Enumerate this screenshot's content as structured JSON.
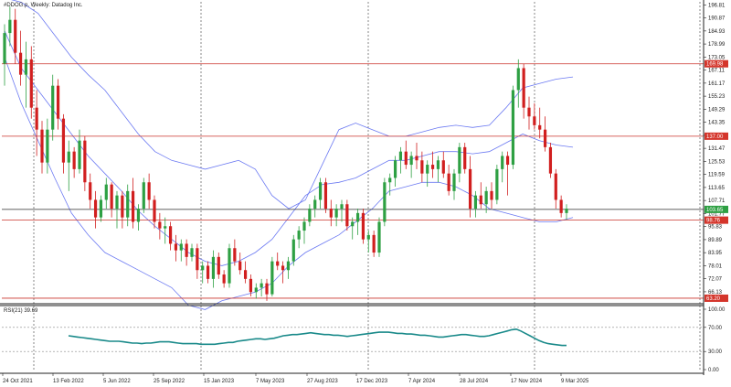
{
  "header": {
    "symbol_label": "#DDOG.p, Weekly:  Datadog Inc."
  },
  "colors": {
    "bull": "#2ea043",
    "bear": "#d11f1f",
    "bands": "#6b79f2",
    "rsi_line": "#1a8a8a",
    "level_line": "#c9322a",
    "price_tag": "#d4352b",
    "current_line": "#2e2e2e",
    "background": "#ffffff"
  },
  "chart_data": [
    {
      "type": "candlestick",
      "title": "#DDOG.p, Weekly:  Datadog Inc.",
      "y_ticks": [
        "196.81",
        "190.87",
        "184.93",
        "178.99",
        "173.05",
        "167.11",
        "161.17",
        "155.23",
        "149.29",
        "143.35",
        "137.41",
        "131.47",
        "125.53",
        "119.59",
        "113.65",
        "107.71",
        "101.77",
        "95.83",
        "89.89",
        "83.95",
        "78.01",
        "72.07",
        "66.13"
      ],
      "ylim": [
        61.1,
        198.2
      ],
      "x_ticks": [
        "24 Oct 2021",
        "13 Feb 2022",
        "5 Jun 2022",
        "25 Sep 2022",
        "15 Jan 2023",
        "7 May 2023",
        "27 Aug 2023",
        "17 Dec 2023",
        "7 Apr 2024",
        "28 Jul 2024",
        "17 Nov 2024",
        "9 Mar 2025"
      ],
      "horizontal_levels": [
        {
          "price": 169.98,
          "label": "169.98"
        },
        {
          "price": 137.0,
          "label": "137.00"
        },
        {
          "price": 103.65,
          "label": "103.65"
        },
        {
          "price": 98.76,
          "label": "98.76"
        },
        {
          "price": 63.2,
          "label": "63.20"
        }
      ],
      "current_price": 103.65,
      "candles": [
        [
          170,
          188,
          160,
          184
        ],
        [
          184,
          196,
          178,
          190
        ],
        [
          190,
          195,
          170,
          175
        ],
        [
          175,
          185,
          160,
          165
        ],
        [
          165,
          180,
          150,
          172
        ],
        [
          172,
          178,
          145,
          150
        ],
        [
          150,
          158,
          128,
          140
        ],
        [
          140,
          144,
          120,
          125
        ],
        [
          125,
          145,
          120,
          140
        ],
        [
          140,
          165,
          135,
          160
        ],
        [
          160,
          163,
          140,
          145
        ],
        [
          145,
          147,
          120,
          125
        ],
        [
          125,
          135,
          112,
          130
        ],
        [
          130,
          132,
          118,
          122
        ],
        [
          122,
          140,
          120,
          135
        ],
        [
          135,
          137,
          112,
          116
        ],
        [
          116,
          120,
          104,
          108
        ],
        [
          108,
          112,
          95,
          100
        ],
        [
          100,
          110,
          98,
          108
        ],
        [
          108,
          118,
          104,
          115
        ],
        [
          115,
          116,
          100,
          104
        ],
        [
          104,
          112,
          95,
          110
        ],
        [
          110,
          112,
          95,
          100
        ],
        [
          100,
          115,
          96,
          112
        ],
        [
          112,
          118,
          95,
          98
        ],
        [
          98,
          106,
          94,
          104
        ],
        [
          104,
          118,
          102,
          116
        ],
        [
          116,
          120,
          104,
          108
        ],
        [
          108,
          110,
          95,
          98
        ],
        [
          98,
          102,
          90,
          95
        ],
        [
          95,
          100,
          88,
          96
        ],
        [
          96,
          98,
          85,
          88
        ],
        [
          88,
          92,
          80,
          85
        ],
        [
          85,
          90,
          80,
          88
        ],
        [
          88,
          90,
          78,
          82
        ],
        [
          82,
          88,
          80,
          86
        ],
        [
          86,
          88,
          72,
          76
        ],
        [
          76,
          80,
          70,
          78
        ],
        [
          78,
          80,
          70,
          72
        ],
        [
          72,
          85,
          68,
          82
        ],
        [
          82,
          84,
          72,
          74
        ],
        [
          74,
          76,
          68,
          70
        ],
        [
          70,
          88,
          68,
          86
        ],
        [
          86,
          90,
          78,
          80
        ],
        [
          80,
          84,
          74,
          76
        ],
        [
          76,
          80,
          70,
          72
        ],
        [
          72,
          74,
          64,
          66
        ],
        [
          66,
          70,
          63,
          68
        ],
        [
          68,
          72,
          64,
          70
        ],
        [
          70,
          72,
          62,
          65
        ],
        [
          65,
          82,
          64,
          80
        ],
        [
          80,
          84,
          76,
          78
        ],
        [
          78,
          80,
          70,
          76
        ],
        [
          76,
          82,
          72,
          80
        ],
        [
          80,
          92,
          78,
          90
        ],
        [
          90,
          96,
          86,
          94
        ],
        [
          94,
          100,
          88,
          98
        ],
        [
          98,
          106,
          96,
          104
        ],
        [
          104,
          110,
          100,
          108
        ],
        [
          108,
          118,
          104,
          116
        ],
        [
          116,
          118,
          102,
          104
        ],
        [
          104,
          108,
          96,
          100
        ],
        [
          100,
          106,
          96,
          104
        ],
        [
          104,
          108,
          98,
          106
        ],
        [
          106,
          108,
          94,
          96
        ],
        [
          96,
          100,
          90,
          98
        ],
        [
          98,
          104,
          92,
          102
        ],
        [
          102,
          104,
          88,
          90
        ],
        [
          90,
          94,
          84,
          92
        ],
        [
          92,
          94,
          82,
          84
        ],
        [
          84,
          100,
          82,
          98
        ],
        [
          98,
          118,
          96,
          116
        ],
        [
          116,
          120,
          110,
          118
        ],
        [
          118,
          128,
          114,
          126
        ],
        [
          126,
          132,
          120,
          130
        ],
        [
          130,
          135,
          122,
          124
        ],
        [
          124,
          130,
          118,
          128
        ],
        [
          128,
          134,
          122,
          126
        ],
        [
          126,
          130,
          116,
          120
        ],
        [
          120,
          126,
          114,
          124
        ],
        [
          124,
          130,
          118,
          122
        ],
        [
          122,
          128,
          116,
          126
        ],
        [
          126,
          130,
          118,
          120
        ],
        [
          120,
          124,
          110,
          112
        ],
        [
          112,
          122,
          108,
          120
        ],
        [
          120,
          134,
          116,
          132
        ],
        [
          132,
          134,
          120,
          122
        ],
        [
          122,
          128,
          100,
          104
        ],
        [
          104,
          112,
          100,
          110
        ],
        [
          110,
          116,
          104,
          106
        ],
        [
          106,
          114,
          102,
          112
        ],
        [
          112,
          116,
          104,
          108
        ],
        [
          108,
          124,
          106,
          122
        ],
        [
          122,
          130,
          116,
          128
        ],
        [
          128,
          130,
          110,
          124
        ],
        [
          124,
          160,
          122,
          158
        ],
        [
          158,
          172,
          150,
          168
        ],
        [
          168,
          170,
          145,
          150
        ],
        [
          150,
          155,
          140,
          146
        ],
        [
          146,
          152,
          140,
          142
        ],
        [
          142,
          150,
          136,
          140
        ],
        [
          140,
          146,
          130,
          132
        ],
        [
          132,
          134,
          118,
          120
        ],
        [
          120,
          122,
          104,
          108
        ],
        [
          108,
          110,
          100,
          102
        ],
        [
          102,
          106,
          99,
          104
        ]
      ],
      "bollinger": {
        "upper": [
          200,
          198,
          193,
          183,
          173,
          165,
          158,
          148,
          138,
          130,
          126,
          124,
          122,
          124,
          126,
          122,
          110,
          104,
          108,
          124,
          140,
          143,
          140,
          137,
          137,
          139,
          141,
          142,
          141,
          142,
          150,
          159,
          161,
          163,
          164
        ],
        "middle": [
          185,
          168,
          158,
          148,
          138,
          128,
          120,
          112,
          103,
          96,
          90,
          84,
          80,
          78,
          80,
          84,
          90,
          100,
          110,
          115,
          116,
          118,
          122,
          126,
          126,
          128,
          130,
          130,
          129,
          130,
          134,
          138,
          135,
          133,
          132
        ],
        "lower": [
          173,
          152,
          135,
          118,
          102,
          92,
          84,
          80,
          76,
          72,
          68,
          60,
          58,
          62,
          64,
          66,
          70,
          78,
          84,
          88,
          92,
          98,
          104,
          112,
          114,
          116,
          116,
          114,
          110,
          104,
          102,
          100,
          98,
          98,
          100
        ]
      },
      "ylabel": "",
      "xlabel": ""
    },
    {
      "type": "line",
      "title": "RSI(21) 39.69",
      "y_ticks": [
        "100.00",
        "70.00",
        "30.00",
        "0.00"
      ],
      "ylim": [
        0,
        100
      ],
      "levels": [
        70,
        30
      ],
      "series": [
        {
          "values": [
            56,
            55,
            54,
            53,
            52,
            51,
            50,
            49,
            48,
            47,
            47,
            47,
            46,
            45,
            44,
            44,
            43,
            44,
            44,
            45,
            46,
            46,
            46,
            45,
            44,
            43,
            43,
            43,
            43,
            42,
            42,
            42,
            42,
            43,
            44,
            45,
            45,
            47,
            48,
            49,
            50,
            51,
            51,
            50,
            51,
            52,
            54,
            56,
            57,
            58,
            58,
            59,
            60,
            61,
            60,
            59,
            58,
            58,
            57,
            57,
            56,
            55,
            56,
            57,
            58,
            59,
            60,
            61,
            62,
            62,
            62,
            61,
            60,
            60,
            59,
            59,
            58,
            57,
            57,
            56,
            55,
            54,
            54,
            55,
            56,
            57,
            58,
            58,
            57,
            56,
            55,
            55,
            56,
            58,
            60,
            62,
            64,
            66,
            67,
            64,
            60,
            56,
            52,
            48,
            45,
            43,
            42,
            41,
            40,
            40
          ]
        }
      ],
      "xlabel": "",
      "ylabel": ""
    }
  ]
}
